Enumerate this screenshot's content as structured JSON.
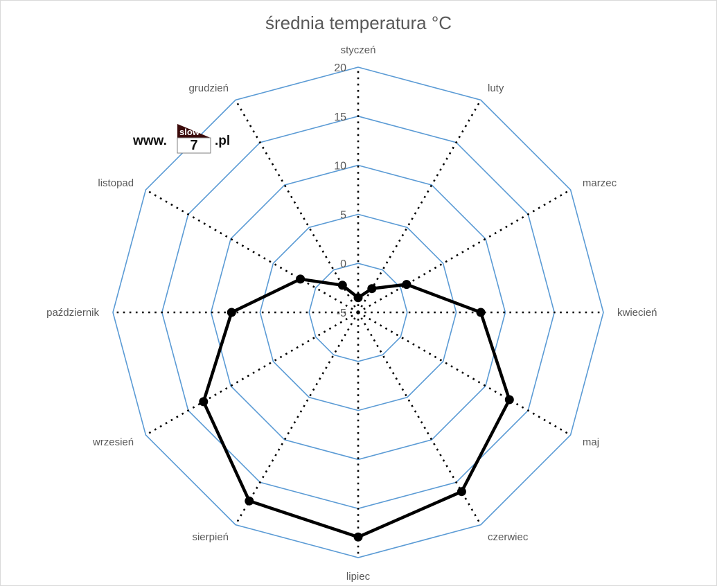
{
  "chart_data": {
    "type": "radar",
    "title": "średnia temperatura °C",
    "categories": [
      "styczeń",
      "luty",
      "marzec",
      "kwiecień",
      "maj",
      "czerwiec",
      "lipiec",
      "sierpień",
      "wrzesień",
      "październik",
      "listopad",
      "grudzień"
    ],
    "values": [
      -3.5,
      -2.2,
      0.7,
      7.5,
      12.8,
      16.1,
      17.9,
      17.2,
      13.2,
      7.9,
      1.8,
      -1.8
    ],
    "rlim": [
      -5,
      20
    ],
    "r_ticks": [
      20,
      15,
      10,
      5,
      0,
      -5
    ],
    "r_tick_labels": [
      "20",
      "15",
      "10",
      "5",
      "0",
      "-5"
    ],
    "grid_color": "#5b9bd5",
    "spoke_color": "#000000",
    "spoke_style": "dotted",
    "series_color": "#000000",
    "legend": "none"
  },
  "watermark": {
    "prefix": "www.",
    "badge_top": "slow",
    "badge_bottom": "7",
    "suffix": ".pl",
    "badge_color": "#3b0a0a"
  }
}
